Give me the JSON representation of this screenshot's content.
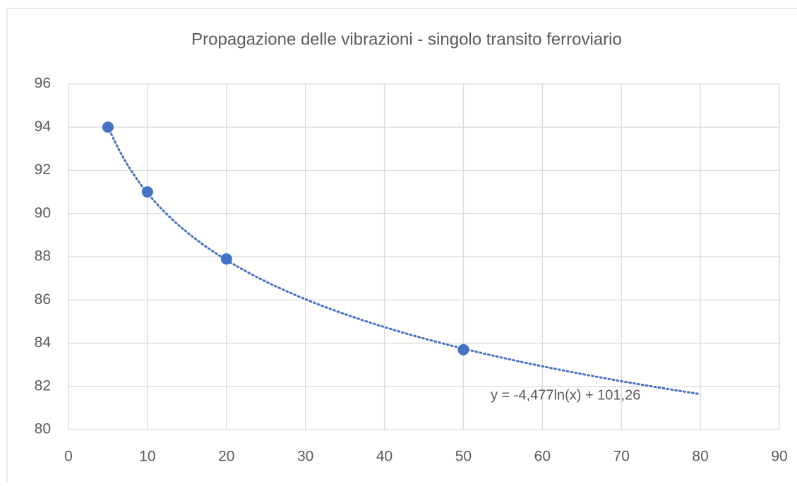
{
  "chart_data": {
    "type": "scatter",
    "title": "Propagazione delle vibrazioni  - singolo transito ferroviario",
    "series": [
      {
        "color": "#4472c4",
        "x": [
          5,
          10,
          20,
          50
        ],
        "values": [
          94,
          91,
          87.9,
          83.7
        ]
      }
    ],
    "xlim": [
      0,
      90
    ],
    "xticks": [
      0,
      10,
      20,
      30,
      40,
      50,
      60,
      70,
      80,
      90
    ],
    "ylim": [
      80,
      96
    ],
    "yticks": [
      80,
      82,
      84,
      86,
      88,
      90,
      92,
      94,
      96
    ],
    "grid": true,
    "trendline": {
      "type": "logarithmic",
      "a": -4.477,
      "b": 101.26,
      "xrange": [
        5,
        80
      ],
      "label": "y = -4,477ln(x) + 101,26"
    }
  }
}
